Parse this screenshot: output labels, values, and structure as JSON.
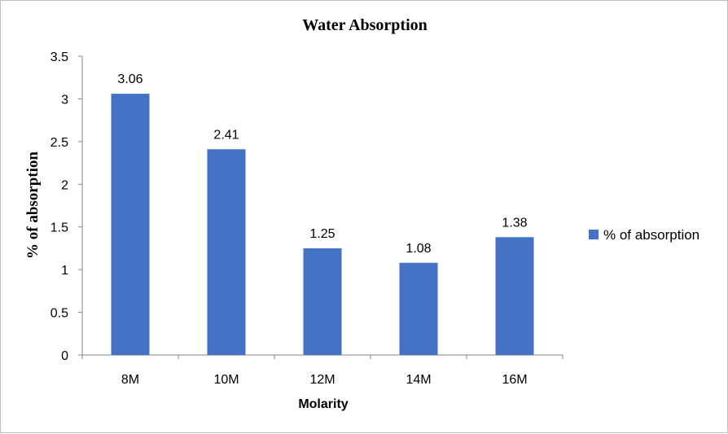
{
  "chart_data": {
    "type": "bar",
    "title": "Water Absorption",
    "xlabel": "Molarity",
    "ylabel": "% of absorption",
    "categories": [
      "8M",
      "10M",
      "12M",
      "14M",
      "16M"
    ],
    "series": [
      {
        "name": "% of absorption",
        "values": [
          3.06,
          2.41,
          1.25,
          1.08,
          1.38
        ],
        "color": "#4472C4"
      }
    ],
    "data_labels": [
      "3.06",
      "2.41",
      "1.25",
      "1.08",
      "1.38"
    ],
    "ylim": [
      0,
      3.5
    ],
    "yticks": [
      "0",
      "0.5",
      "1",
      "1.5",
      "2",
      "2.5",
      "3",
      "3.5"
    ],
    "grid": false,
    "legend_position": "right"
  }
}
